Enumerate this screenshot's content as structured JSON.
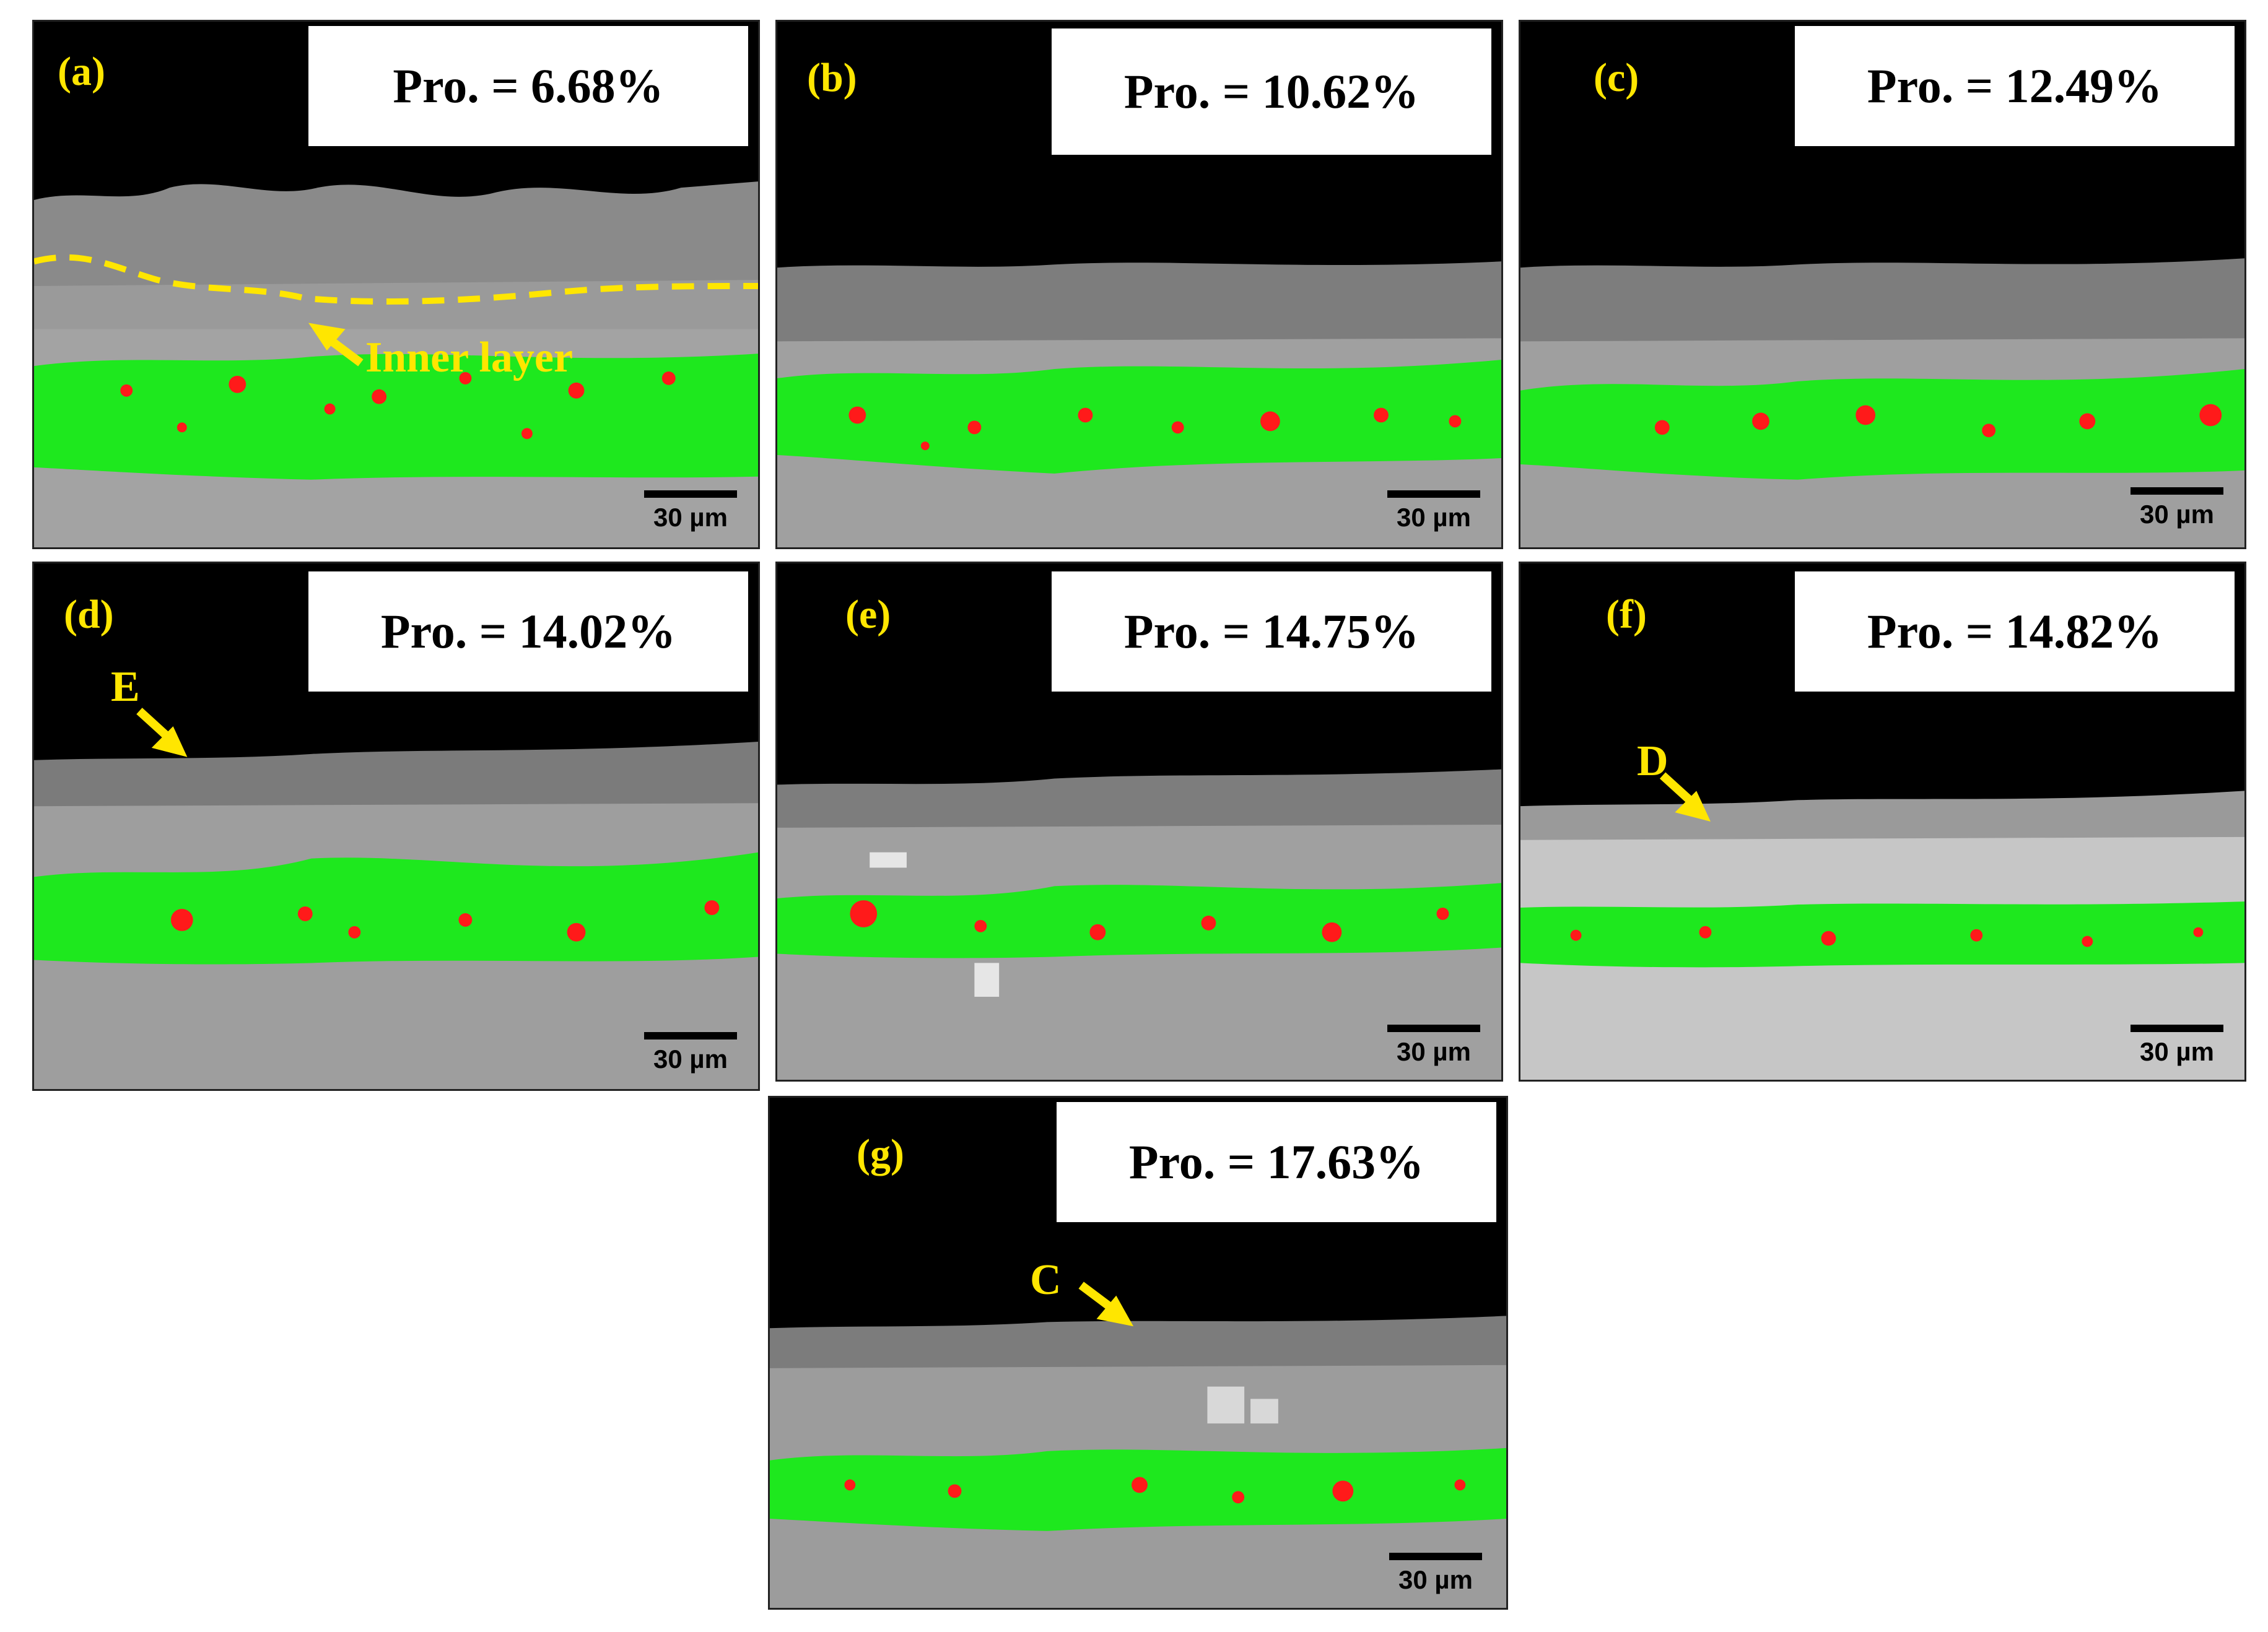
{
  "scale_bar": "30 µm",
  "colors": {
    "label": "#ffe600",
    "pore_region": "#00e600",
    "pore": "#ff1a1a"
  },
  "panels": [
    {
      "id": "a",
      "label": "(a)",
      "porosity": "Pro. = 6.68%"
    },
    {
      "id": "b",
      "label": "(b)",
      "porosity": "Pro. = 10.62%"
    },
    {
      "id": "c",
      "label": "(c)",
      "porosity": "Pro. = 12.49%"
    },
    {
      "id": "d",
      "label": "(d)",
      "porosity": "Pro. = 14.02%"
    },
    {
      "id": "e",
      "label": "(e)",
      "porosity": "Pro. = 14.75%"
    },
    {
      "id": "f",
      "label": "(f)",
      "porosity": "Pro. = 14.82%"
    },
    {
      "id": "g",
      "label": "(g)",
      "porosity": "Pro. = 17.63%"
    }
  ],
  "annotations": {
    "inner_layer": "Inner layer",
    "marker_e": "E",
    "marker_d": "D",
    "marker_c": "C"
  }
}
